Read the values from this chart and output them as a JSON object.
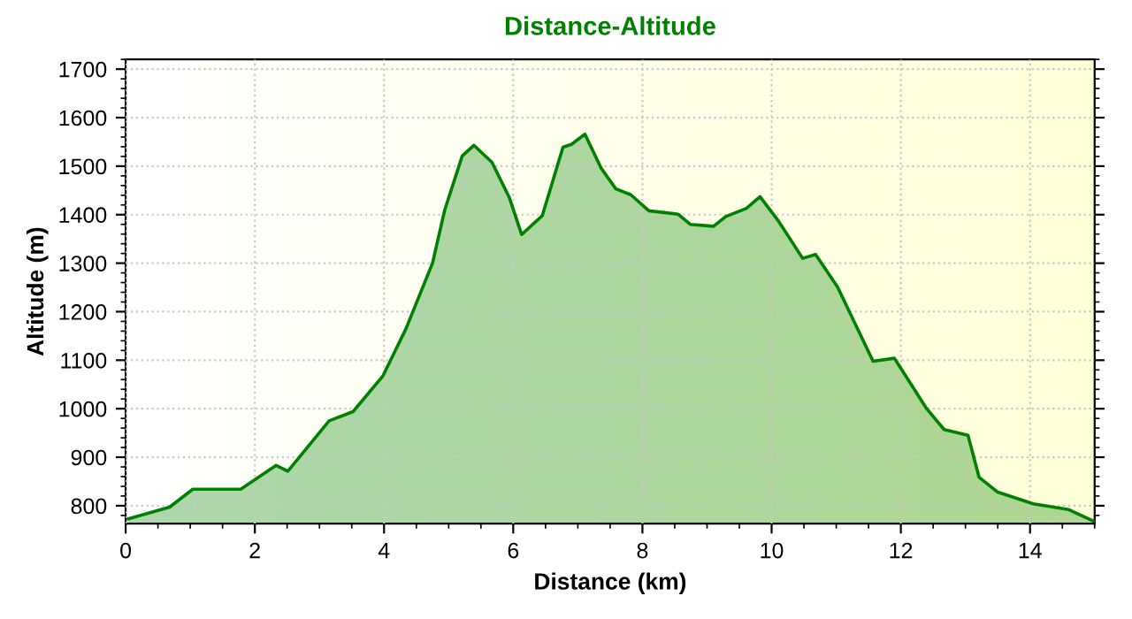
{
  "chart_data": {
    "type": "area",
    "title": "Distance-Altitude",
    "xlabel": "Distance (km)",
    "ylabel": "Altitude (m)",
    "x": [
      0.04,
      0.68,
      1.04,
      1.78,
      2.33,
      2.51,
      3.15,
      3.52,
      3.98,
      4.34,
      4.75,
      4.94,
      5.21,
      5.39,
      5.67,
      5.94,
      6.13,
      6.45,
      6.77,
      6.9,
      7.11,
      7.36,
      7.59,
      7.82,
      8.1,
      8.55,
      8.74,
      9.1,
      9.29,
      9.61,
      9.82,
      10.11,
      10.48,
      10.68,
      11.02,
      11.57,
      11.9,
      12.4,
      12.67,
      13.04,
      13.21,
      13.5,
      14.05,
      14.6,
      15.0
    ],
    "series": [
      {
        "color": "#008000",
        "values": [
          773,
          797,
          834,
          834,
          883,
          871,
          975,
          994,
          1067,
          1165,
          1300,
          1410,
          1521,
          1543,
          1508,
          1435,
          1359,
          1398,
          1539,
          1545,
          1566,
          1496,
          1453,
          1441,
          1408,
          1401,
          1380,
          1376,
          1396,
          1413,
          1437,
          1386,
          1310,
          1318,
          1251,
          1098,
          1104,
          1000,
          957,
          945,
          859,
          828,
          804,
          792,
          767
        ]
      }
    ],
    "xlim": [
      0,
      15
    ],
    "xticks": [
      0,
      2,
      4,
      6,
      8,
      10,
      12,
      14
    ],
    "ylim": [
      763,
      1720
    ],
    "yticks": [
      800,
      900,
      1000,
      1100,
      1200,
      1300,
      1400,
      1500,
      1600,
      1700
    ],
    "grid": true,
    "legend": false
  }
}
